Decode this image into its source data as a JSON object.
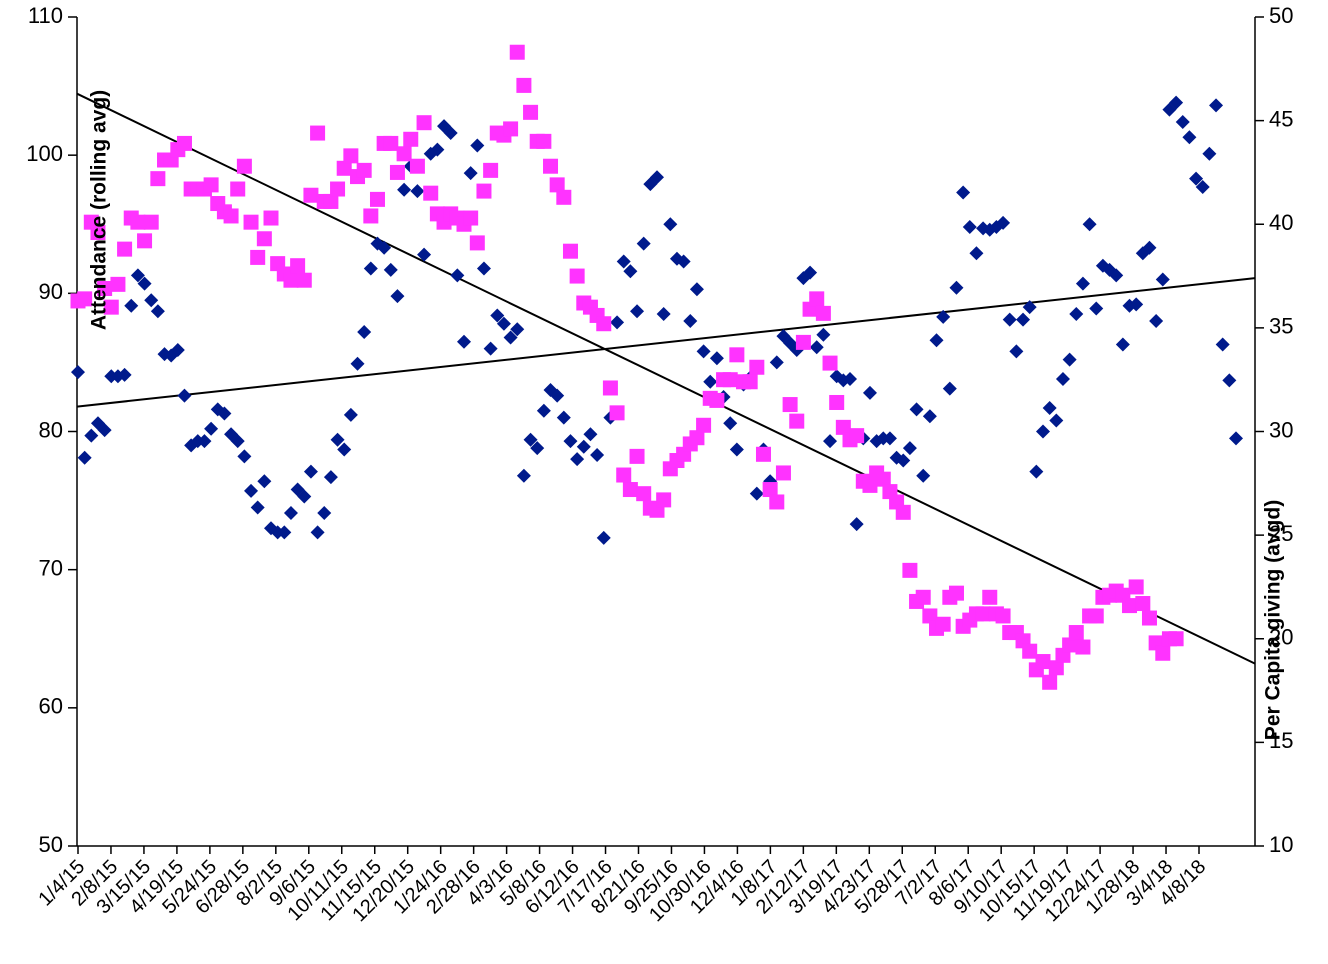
{
  "chart_data": {
    "type": "scatter",
    "title": "",
    "ylabel_left": "Attendance (rolling avg)",
    "ylabel_right": "Per Capita giving (avgd)",
    "xlabel": "",
    "ylim_left": [
      50,
      110
    ],
    "ylim_right": [
      10,
      50
    ],
    "yticks_left": [
      50,
      60,
      70,
      80,
      90,
      100,
      110
    ],
    "yticks_right": [
      10,
      15,
      20,
      25,
      30,
      35,
      40,
      45,
      50
    ],
    "x_tick_labels": [
      "1/4/15",
      "2/8/15",
      "3/15/15",
      "4/19/15",
      "5/24/15",
      "6/28/15",
      "8/2/15",
      "9/6/15",
      "10/11/15",
      "11/15/15",
      "12/20/15",
      "1/24/16",
      "2/28/16",
      "4/3/16",
      "5/8/16",
      "6/12/16",
      "7/17/16",
      "8/21/16",
      "9/25/16",
      "10/30/16",
      "12/4/16",
      "1/8/17",
      "2/12/17",
      "3/19/17",
      "4/23/17",
      "5/28/17",
      "7/2/17",
      "8/6/17",
      "9/10/17",
      "10/15/17",
      "11/19/17",
      "12/24/17",
      "1/28/18",
      "3/4/18",
      "4/8/18"
    ],
    "grid": false,
    "legend": "none",
    "series": [
      {
        "axis": "left",
        "marker": "diamond",
        "color": "#001a8c",
        "values": [
          84.3,
          78.1,
          79.7,
          80.6,
          80.1,
          84.0,
          84.0,
          84.1,
          89.1,
          91.3,
          90.7,
          89.5,
          88.7,
          85.6,
          85.5,
          85.9,
          82.6,
          79.0,
          79.3,
          79.3,
          80.2,
          81.6,
          81.3,
          79.8,
          79.3,
          78.2,
          75.7,
          74.5,
          76.4,
          73.0,
          72.7,
          72.7,
          74.1,
          75.8,
          75.3,
          77.1,
          72.7,
          74.1,
          76.7,
          79.4,
          78.7,
          81.2,
          84.9,
          87.2,
          91.8,
          93.6,
          93.3,
          91.7,
          89.8,
          97.5,
          99.2,
          97.4,
          92.8,
          100.1,
          100.4,
          102.1,
          101.6,
          91.3,
          86.5,
          98.7,
          100.7,
          91.8,
          86.0,
          88.4,
          87.8,
          86.8,
          87.4,
          76.8,
          79.4,
          78.8,
          81.5,
          83.0,
          82.6,
          81.0,
          79.3,
          78.0,
          78.9,
          79.8,
          78.3,
          72.3,
          81.0,
          87.9,
          92.3,
          91.6,
          88.7,
          93.6,
          97.9,
          98.4,
          88.5,
          95.0,
          92.5,
          92.3,
          88.0,
          90.3,
          85.8,
          83.6,
          85.3,
          82.5,
          80.6,
          78.7,
          83.4,
          83.9,
          75.5,
          78.7,
          76.4,
          85.0,
          86.9,
          86.4,
          85.9,
          91.1,
          91.5,
          86.1,
          87.0,
          79.3,
          84.0,
          83.7,
          83.8,
          73.3,
          79.5,
          82.8,
          79.3,
          79.5,
          79.5,
          78.1,
          77.9,
          78.8,
          81.6,
          76.8,
          81.1,
          86.6,
          88.3,
          83.1,
          90.4,
          97.3,
          94.8,
          92.9,
          94.7,
          94.6,
          94.8,
          95.1,
          88.1,
          85.8,
          88.1,
          89.0,
          77.1,
          80.0,
          81.7,
          80.8,
          83.8,
          85.2,
          88.5,
          90.7,
          95.0,
          88.9,
          92.0,
          91.7,
          91.3,
          86.3,
          89.1,
          89.2,
          92.9,
          93.3,
          88.0,
          91.0,
          103.3,
          103.8,
          102.4,
          101.3,
          98.3,
          97.7,
          100.1,
          103.6,
          86.3,
          83.7,
          79.5
        ]
      },
      {
        "axis": "right",
        "marker": "square",
        "color": "#ff33ff",
        "values": [
          36.3,
          36.4,
          40.1,
          39.6,
          36.9,
          36.0,
          37.1,
          38.8,
          40.3,
          40.1,
          39.2,
          40.1,
          42.2,
          43.1,
          43.1,
          43.6,
          43.9,
          41.7,
          41.7,
          41.7,
          41.9,
          41.0,
          40.6,
          40.4,
          41.7,
          42.8,
          40.1,
          38.4,
          39.3,
          40.3,
          38.1,
          37.6,
          37.3,
          38.0,
          37.3,
          41.4,
          44.4,
          41.1,
          41.1,
          41.7,
          42.7,
          43.3,
          42.3,
          42.6,
          40.4,
          41.2,
          43.9,
          43.9,
          42.5,
          43.4,
          44.1,
          42.8,
          44.9,
          41.5,
          40.5,
          40.1,
          40.5,
          40.3,
          40.0,
          40.3,
          39.1,
          41.6,
          42.6,
          44.4,
          44.3,
          44.6,
          48.3,
          46.7,
          45.4,
          44.0,
          44.0,
          42.8,
          41.9,
          41.3,
          38.7,
          37.5,
          36.2,
          36.0,
          35.6,
          35.2,
          32.1,
          30.9,
          27.9,
          27.2,
          28.8,
          27.0,
          26.3,
          26.2,
          26.7,
          28.2,
          28.6,
          28.9,
          29.4,
          29.7,
          30.3,
          31.6,
          31.5,
          32.5,
          32.5,
          33.7,
          32.4,
          32.4,
          33.1,
          28.9,
          27.2,
          26.6,
          28.0,
          31.3,
          30.5,
          34.3,
          35.9,
          36.4,
          35.7,
          33.3,
          31.4,
          30.2,
          29.6,
          29.8,
          27.6,
          27.4,
          28.0,
          27.7,
          27.1,
          26.6,
          26.1,
          23.3,
          21.8,
          22.0,
          21.1,
          20.5,
          20.7,
          22.0,
          22.2,
          20.6,
          20.9,
          21.2,
          21.2,
          22.0,
          21.2,
          21.1,
          20.3,
          20.3,
          19.9,
          19.4,
          18.5,
          18.9,
          17.9,
          18.6,
          19.2,
          19.7,
          20.3,
          19.6,
          21.1,
          21.1,
          22.0,
          22.1,
          22.3,
          22.1,
          21.6,
          22.5,
          21.7,
          21.0,
          19.8,
          19.3,
          20.0,
          20.0
        ]
      }
    ],
    "trendlines": [
      {
        "axis": "left",
        "y_start": 81.8,
        "y_end": 91.1
      },
      {
        "axis": "right",
        "y_start": 46.3,
        "y_end": 18.8
      }
    ]
  }
}
